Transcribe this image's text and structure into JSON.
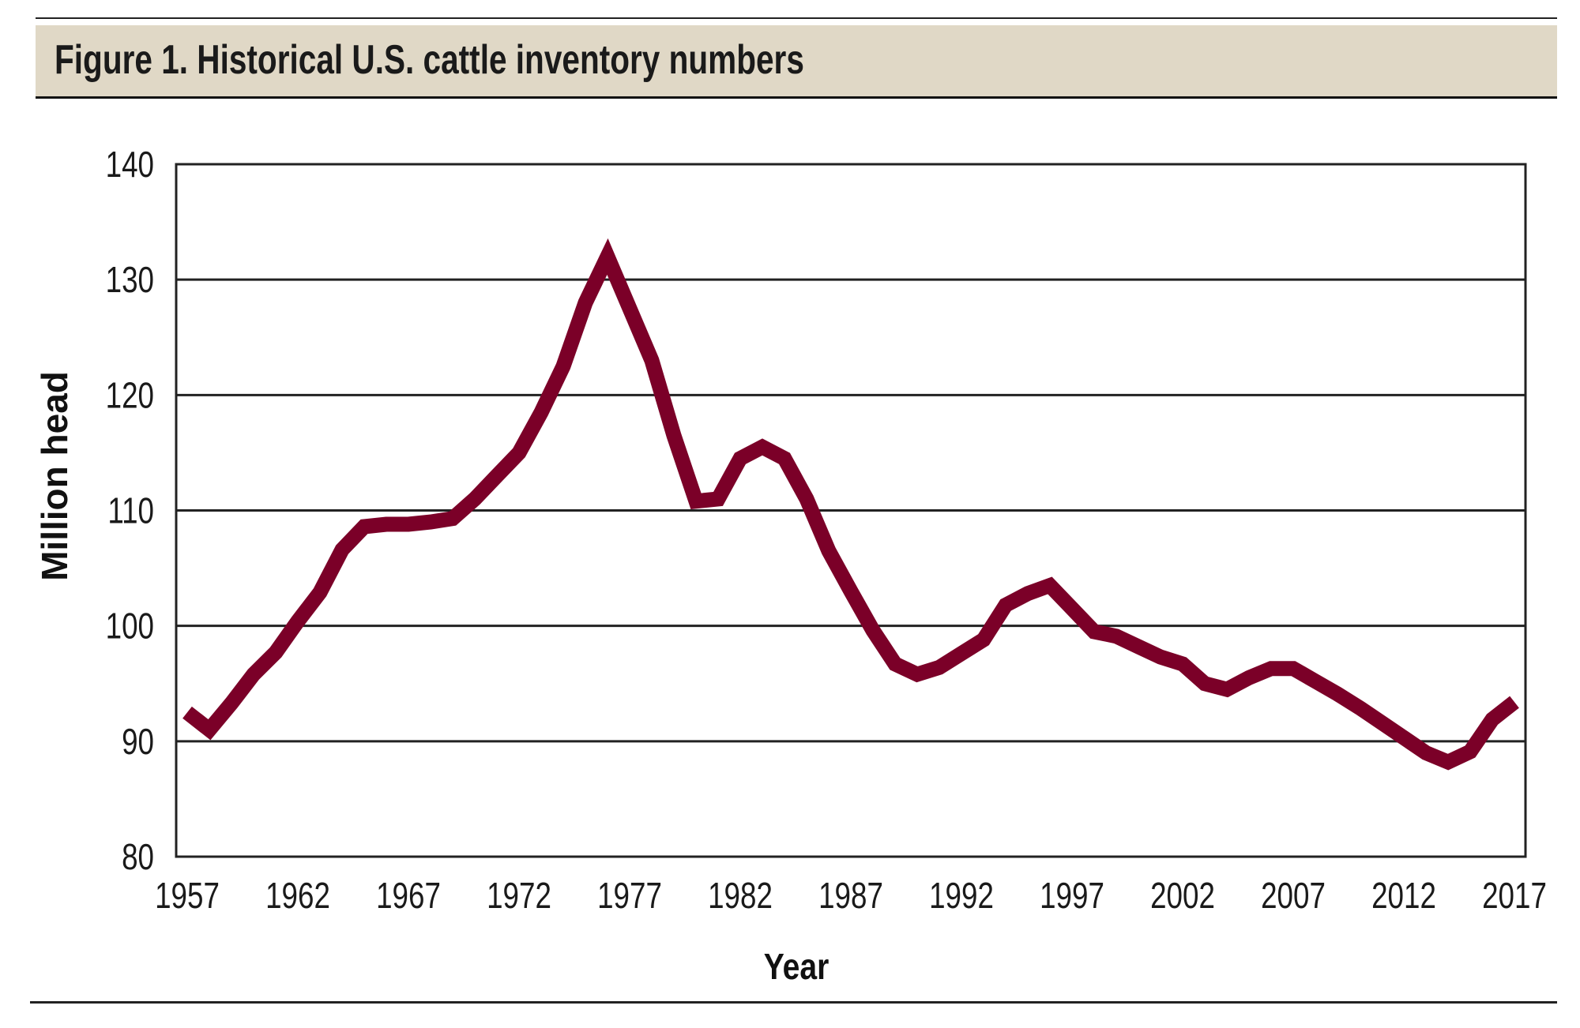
{
  "title": "Figure 1. Historical U.S. cattle inventory numbers",
  "colors": {
    "line": "#7b0028",
    "title_bg": "#e0d8c6"
  },
  "chart_data": {
    "type": "line",
    "title": "Figure 1. Historical U.S. cattle inventory numbers",
    "xlabel": "Year",
    "ylabel": "Million head",
    "xlim": [
      1956.5,
      2017.5
    ],
    "ylim": [
      80,
      140
    ],
    "grid": true,
    "x_ticks": [
      "1957",
      "1962",
      "1967",
      "1972",
      "1977",
      "1982",
      "1987",
      "1992",
      "1997",
      "2002",
      "2007",
      "2012",
      "2017"
    ],
    "y_ticks": [
      "80",
      "90",
      "100",
      "110",
      "120",
      "130",
      "140"
    ],
    "series": [
      {
        "name": "Cattle inventory",
        "x": [
          1957,
          1958,
          1959,
          1960,
          1961,
          1962,
          1963,
          1964,
          1965,
          1966,
          1967,
          1968,
          1969,
          1970,
          1971,
          1972,
          1973,
          1974,
          1975,
          1976,
          1977,
          1978,
          1979,
          1980,
          1981,
          1982,
          1983,
          1984,
          1985,
          1986,
          1987,
          1988,
          1989,
          1990,
          1991,
          1992,
          1993,
          1994,
          1995,
          1996,
          1997,
          1998,
          1999,
          2000,
          2001,
          2002,
          2003,
          2004,
          2005,
          2006,
          2007,
          2008,
          2009,
          2010,
          2011,
          2012,
          2013,
          2014,
          2015,
          2016,
          2017
        ],
        "values": [
          92.5,
          91.0,
          93.3,
          95.8,
          97.7,
          100.4,
          102.9,
          106.6,
          108.6,
          108.8,
          108.8,
          109.0,
          109.3,
          111.0,
          113.0,
          115.0,
          118.5,
          122.5,
          128.0,
          132.0,
          127.5,
          123.0,
          116.5,
          110.8,
          111.0,
          114.5,
          115.5,
          114.5,
          111.0,
          106.5,
          103.0,
          99.6,
          96.7,
          95.8,
          96.4,
          97.6,
          98.8,
          101.8,
          102.8,
          103.5,
          101.5,
          99.5,
          99.1,
          98.2,
          97.3,
          96.7,
          95.0,
          94.5,
          95.5,
          96.3,
          96.3,
          95.2,
          94.1,
          92.9,
          91.6,
          90.3,
          89.0,
          88.2,
          89.1,
          91.9,
          93.4
        ]
      }
    ]
  }
}
